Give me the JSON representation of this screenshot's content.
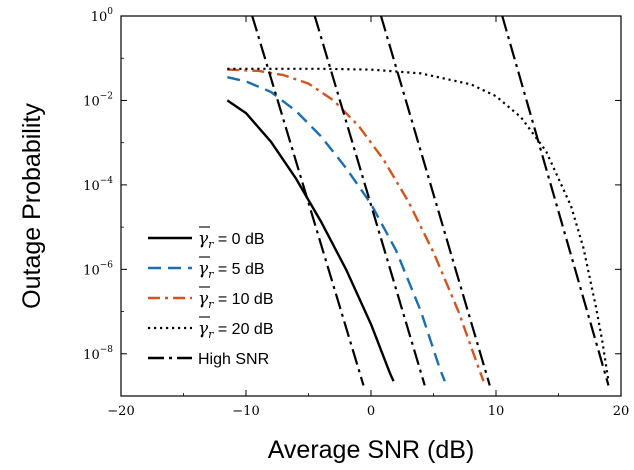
{
  "chart_data": {
    "type": "line",
    "xlabel": "Average SNR (dB)",
    "ylabel": "Outage Probability",
    "xlim": [
      -20,
      20
    ],
    "ylim_log10": [
      -9,
      0
    ],
    "y_scale": "log",
    "grid": false,
    "legend_position": "lower-left",
    "x_ticks": [
      "−20",
      "−10",
      "0",
      "10",
      "20"
    ],
    "y_ticks": [
      {
        "base": "10",
        "exp": "0"
      },
      {
        "base": "10",
        "exp": "−2"
      },
      {
        "base": "10",
        "exp": "−4"
      },
      {
        "base": "10",
        "exp": "−6"
      },
      {
        "base": "10",
        "exp": "−8"
      }
    ],
    "series": [
      {
        "name": "γr = 0 dB",
        "legend": {
          "gamma": "γ",
          "sub": "r",
          "value": " = 0 dB"
        },
        "color": "#000000",
        "dash": "solid",
        "points": [
          [
            -11.5,
            -2.0
          ],
          [
            -10,
            -2.3
          ],
          [
            -8,
            -2.98
          ],
          [
            -6,
            -3.85
          ],
          [
            -4,
            -4.87
          ],
          [
            -2,
            -6.0
          ],
          [
            0,
            -7.3
          ],
          [
            1.5,
            -8.45
          ],
          [
            1.8,
            -8.65
          ]
        ]
      },
      {
        "name": "γr = 5 dB",
        "legend": {
          "gamma": "γ",
          "sub": "r",
          "value": " = 5 dB"
        },
        "color": "#1a6fb0",
        "dash": "dashed",
        "points": [
          [
            -11.5,
            -1.45
          ],
          [
            -10,
            -1.55
          ],
          [
            -8,
            -1.8
          ],
          [
            -6,
            -2.25
          ],
          [
            -4,
            -2.85
          ],
          [
            -2,
            -3.6
          ],
          [
            0,
            -4.45
          ],
          [
            2,
            -5.55
          ],
          [
            4,
            -7.0
          ],
          [
            5.5,
            -8.35
          ],
          [
            5.9,
            -8.65
          ]
        ]
      },
      {
        "name": "γr = 10 dB",
        "legend": {
          "gamma": "γ",
          "sub": "r",
          "value": " = 10 dB"
        },
        "color": "#d4541e",
        "dash": "dashdot",
        "points": [
          [
            -11.5,
            -1.27
          ],
          [
            -9,
            -1.3
          ],
          [
            -7,
            -1.4
          ],
          [
            -5,
            -1.6
          ],
          [
            -3,
            -2.0
          ],
          [
            -1,
            -2.6
          ],
          [
            1,
            -3.4
          ],
          [
            3,
            -4.4
          ],
          [
            5,
            -5.6
          ],
          [
            7,
            -7.0
          ],
          [
            8.5,
            -8.25
          ],
          [
            9.0,
            -8.65
          ]
        ]
      },
      {
        "name": "γr = 20 dB",
        "legend": {
          "gamma": "γ",
          "sub": "r",
          "value": " = 20 dB"
        },
        "color": "#000000",
        "dash": "dotted",
        "points": [
          [
            -11.5,
            -1.25
          ],
          [
            -4,
            -1.25
          ],
          [
            0,
            -1.27
          ],
          [
            4,
            -1.36
          ],
          [
            8,
            -1.62
          ],
          [
            10,
            -1.9
          ],
          [
            12,
            -2.4
          ],
          [
            14,
            -3.2
          ],
          [
            16,
            -4.5
          ],
          [
            17,
            -5.5
          ],
          [
            18,
            -6.9
          ],
          [
            18.5,
            -7.7
          ],
          [
            19.0,
            -8.65
          ]
        ]
      },
      {
        "name": "High SNR",
        "legend": {
          "gamma": "",
          "sub": "",
          "value": "High SNR"
        },
        "color": "#000000",
        "dash": "longdashdot",
        "points": []
      }
    ],
    "asymptotes": [
      {
        "points": [
          [
            -9.5,
            0
          ],
          [
            -0.6,
            -8.75
          ]
        ]
      },
      {
        "points": [
          [
            -4.5,
            0
          ],
          [
            4.3,
            -8.75
          ]
        ]
      },
      {
        "points": [
          [
            0.8,
            0
          ],
          [
            9.5,
            -8.75
          ]
        ]
      },
      {
        "points": [
          [
            10.5,
            0
          ],
          [
            19.0,
            -8.75
          ]
        ]
      }
    ]
  }
}
